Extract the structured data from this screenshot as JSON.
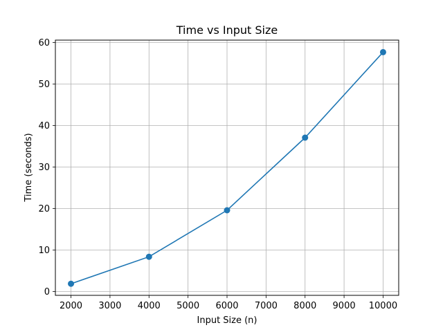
{
  "chart_data": {
    "type": "line",
    "title": "Time vs Input Size",
    "xlabel": "Input Size (n)",
    "ylabel": "Time (seconds)",
    "x": [
      2000,
      4000,
      6000,
      8000,
      10000
    ],
    "series": [
      {
        "values": [
          1.9,
          8.4,
          19.6,
          37.1,
          57.7
        ]
      }
    ],
    "xlim": [
      1600,
      10400
    ],
    "ylim": [
      -0.9,
      60.6
    ],
    "xticks": [
      2000,
      3000,
      4000,
      5000,
      6000,
      7000,
      8000,
      9000,
      10000
    ],
    "yticks": [
      0,
      10,
      20,
      30,
      40,
      50,
      60
    ],
    "grid": true,
    "line_color": "#1f77b4",
    "marker": "circle"
  }
}
